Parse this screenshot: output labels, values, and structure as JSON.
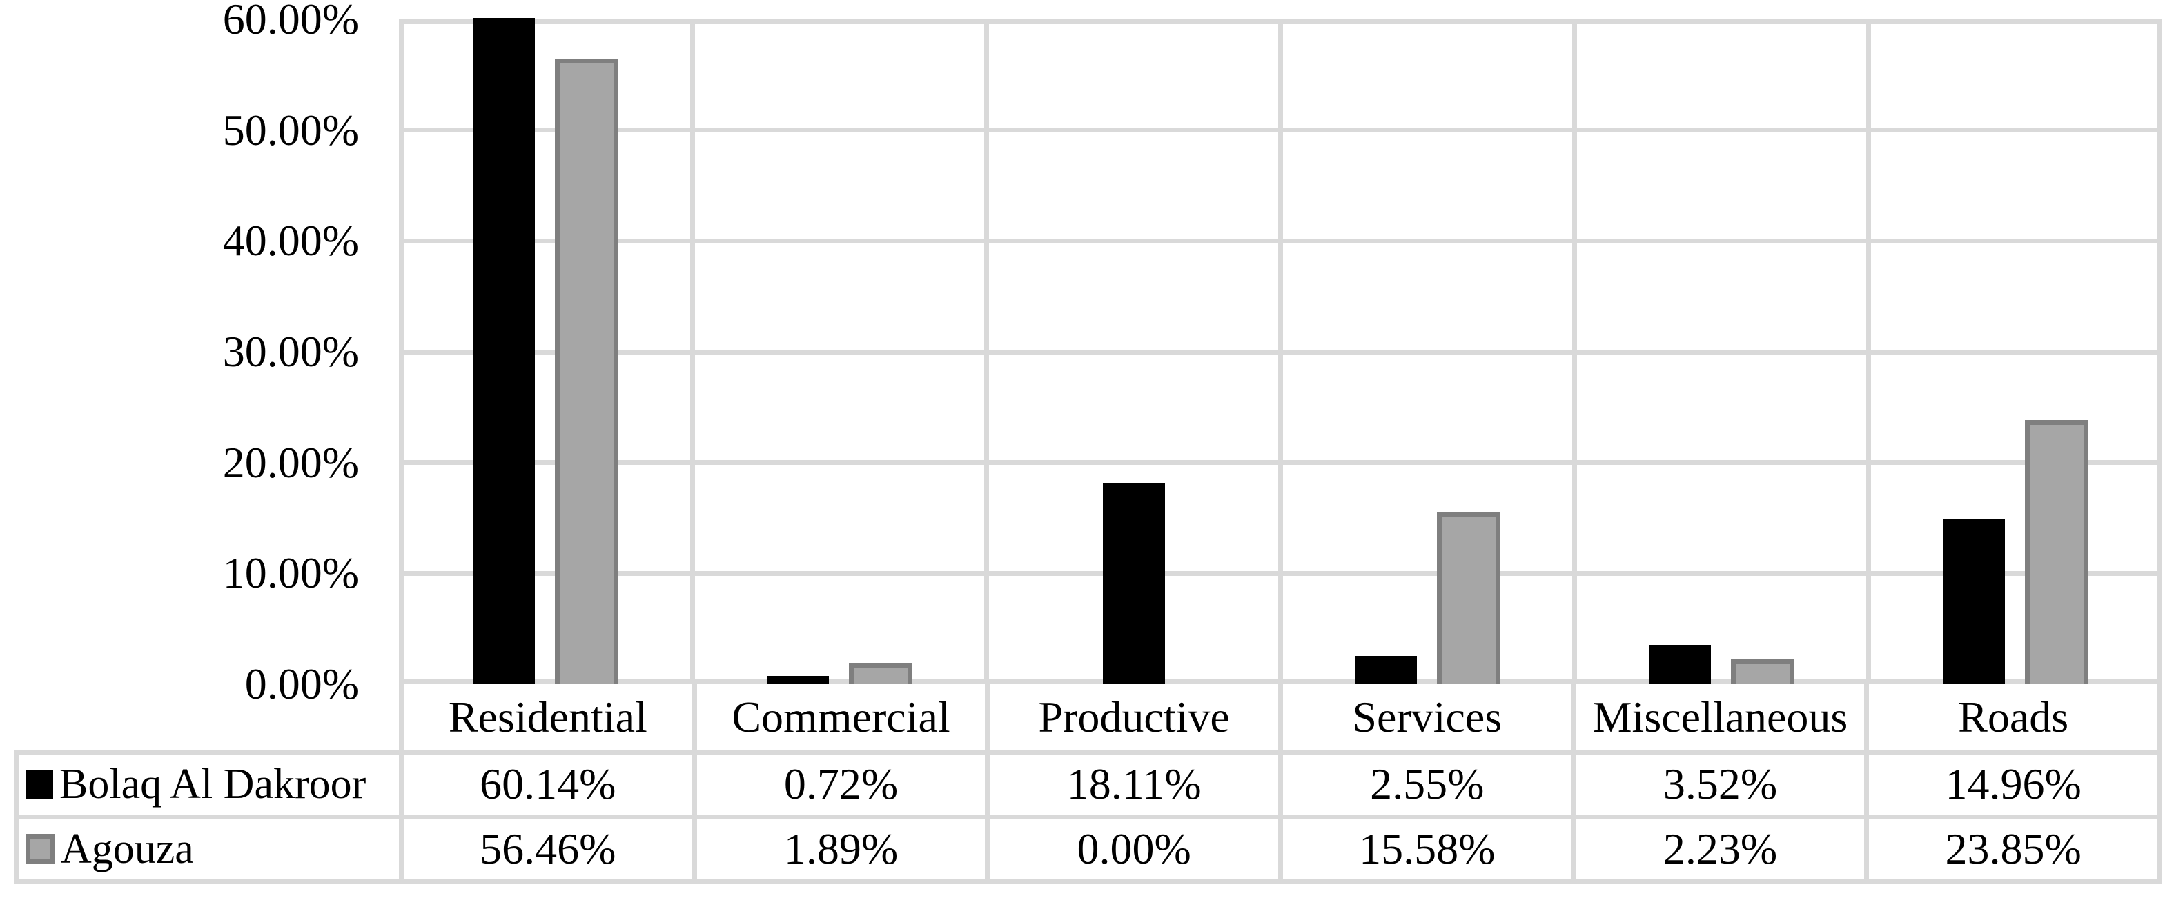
{
  "chart_data": {
    "type": "bar",
    "title": "",
    "categories": [
      "Residential",
      "Commercial",
      "Productive",
      "Services",
      "Miscellaneous",
      "Roads"
    ],
    "series": [
      {
        "name": "Bolaq Al Dakroor",
        "values": [
          60.14,
          0.72,
          18.11,
          2.55,
          3.52,
          14.96
        ],
        "fill": "#000000",
        "border": "#000000"
      },
      {
        "name": "Agouza",
        "values": [
          56.46,
          1.89,
          0.0,
          15.58,
          2.23,
          23.85
        ],
        "fill": "#A6A6A6",
        "border": "#7F7F7F"
      }
    ],
    "y_axis": {
      "min": 0,
      "max": 60,
      "step": 10,
      "tick_labels": [
        "0.00%",
        "10.00%",
        "20.00%",
        "30.00%",
        "40.00%",
        "50.00%",
        "60.00%"
      ]
    },
    "grid": true,
    "legend_position": "data-table-left",
    "data_table": {
      "rows": [
        {
          "legend": "Bolaq Al Dakroor",
          "cells": [
            "60.14%",
            "0.72%",
            "18.11%",
            "2.55%",
            "3.52%",
            "14.96%"
          ]
        },
        {
          "legend": "Agouza",
          "cells": [
            "56.46%",
            "1.89%",
            "0.00%",
            "15.58%",
            "2.23%",
            "23.85%"
          ]
        }
      ]
    },
    "colors": {
      "gridline": "#D9D9D9",
      "plot_background": "#FFFFFF",
      "text": "#000000"
    }
  }
}
